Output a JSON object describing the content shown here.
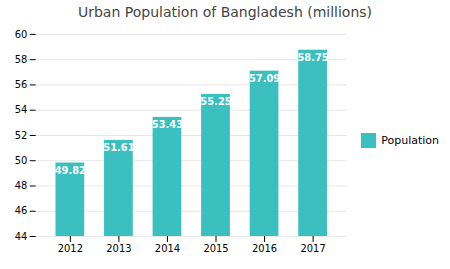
{
  "chart_data": {
    "type": "bar",
    "title": "Urban Population of Bangladesh (millions)",
    "categories": [
      "2012",
      "2013",
      "2014",
      "2015",
      "2016",
      "2017"
    ],
    "series": [
      {
        "name": "Population",
        "color": "#3BBFBF",
        "values": [
          49.82,
          51.61,
          53.43,
          55.25,
          57.09,
          58.75
        ]
      }
    ],
    "ylim": [
      44,
      60
    ],
    "yticks": [
      44,
      46,
      48,
      50,
      52,
      54,
      56,
      58,
      60
    ],
    "grid": true,
    "legend": "right",
    "data_labels": true
  }
}
